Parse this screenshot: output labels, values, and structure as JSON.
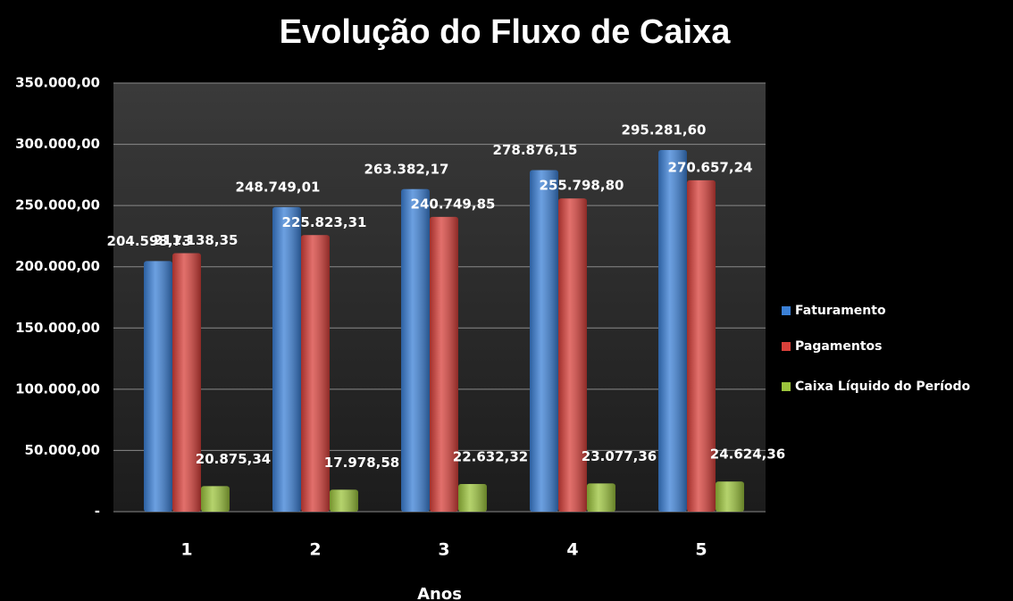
{
  "chart_data": {
    "type": "bar",
    "title": "Evolução do Fluxo de Caixa",
    "x_label": "Anos",
    "categories": [
      "1",
      "2",
      "3",
      "4",
      "5"
    ],
    "series": [
      {
        "name": "Faturamento",
        "color": "#3b80d6",
        "values": [
          204598.73,
          248749.01,
          263382.17,
          278876.15,
          295281.6
        ],
        "value_labels": [
          "204.598,73",
          "248.749,01",
          "263.382,17",
          "278.876,15",
          "295.281,60"
        ]
      },
      {
        "name": "Pagamentos",
        "color": "#d8403a",
        "values": [
          211138.35,
          225823.31,
          240749.85,
          255798.8,
          270657.24
        ],
        "value_labels": [
          "211.138,35",
          "225.823,31",
          "240.749,85",
          "255.798,80",
          "270.657,24"
        ]
      },
      {
        "name": "Caixa Líquido do Período",
        "color": "#9cc43c",
        "values": [
          20875.34,
          17978.58,
          22632.32,
          23077.36,
          24624.36
        ],
        "value_labels": [
          "20.875,34",
          "17.978,58",
          "22.632,32",
          "23.077,36",
          "24.624,36"
        ]
      }
    ],
    "ylim": [
      0,
      350000
    ],
    "yticks": [
      {
        "value": 0,
        "label": "-"
      },
      {
        "value": 50000,
        "label": "50.000,00"
      },
      {
        "value": 100000,
        "label": "100.000,00"
      },
      {
        "value": 150000,
        "label": "150.000,00"
      },
      {
        "value": 200000,
        "label": "200.000,00"
      },
      {
        "value": 250000,
        "label": "250.000,00"
      },
      {
        "value": 300000,
        "label": "300.000,00"
      },
      {
        "value": 350000,
        "label": "350.000,00"
      }
    ],
    "grid": true,
    "legend": "right"
  }
}
